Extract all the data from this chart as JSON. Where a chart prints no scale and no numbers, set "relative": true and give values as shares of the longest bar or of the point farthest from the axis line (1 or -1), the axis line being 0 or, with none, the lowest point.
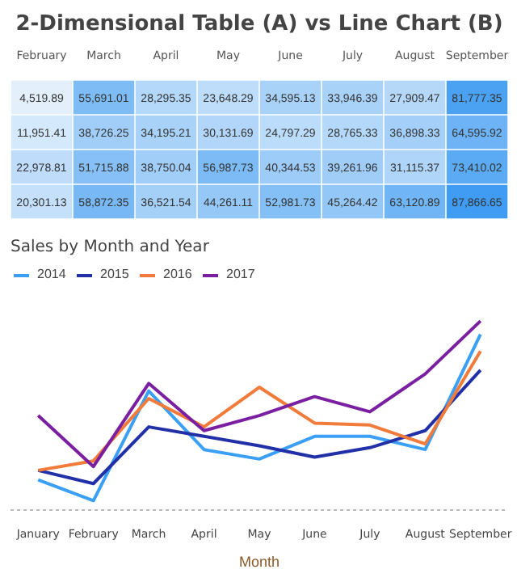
{
  "chart_data": [
    {
      "type": "heatmap",
      "title": "2-Dimensional Table (A) vs Line Chart (B)",
      "categories": [
        "February",
        "March",
        "April",
        "May",
        "June",
        "July",
        "August",
        "September"
      ],
      "y_categories": [
        null,
        null,
        null,
        null
      ],
      "cells": [
        [
          4519.89,
          55691.01,
          28295.35,
          23648.29,
          34595.13,
          33946.39,
          27909.47,
          81777.35
        ],
        [
          11951.41,
          38726.25,
          34195.21,
          30131.69,
          24797.29,
          28765.33,
          36898.33,
          64595.92
        ],
        [
          22978.81,
          51715.88,
          38750.04,
          56987.73,
          40344.53,
          39261.96,
          31115.37,
          73410.02
        ],
        [
          20301.13,
          58872.35,
          36521.54,
          44261.11,
          52981.73,
          45264.42,
          63120.89,
          87866.65
        ]
      ],
      "cell_labels": [
        [
          "4,519.89",
          "55,691.01",
          "28,295.35",
          "23,648.29",
          "34,595.13",
          "33,946.39",
          "27,909.47",
          "81,777.35"
        ],
        [
          "11,951.41",
          "38,726.25",
          "34,195.21",
          "30,131.69",
          "24,797.29",
          "28,765.33",
          "36,898.33",
          "64,595.92"
        ],
        [
          "22,978.81",
          "51,715.88",
          "38,750.04",
          "56,987.73",
          "40,344.53",
          "39,261.96",
          "31,115.37",
          "73,410.02"
        ],
        [
          "20,301.13",
          "58,872.35",
          "36,521.54",
          "44,261.11",
          "52,981.73",
          "45,264.42",
          "63,120.89",
          "87,866.65"
        ]
      ]
    },
    {
      "type": "line",
      "title": "Sales by Month and Year",
      "xlabel": "Month",
      "relative": true,
      "legend": "top left",
      "categories": [
        "January",
        "February",
        "March",
        "April",
        "May",
        "June",
        "July",
        "August",
        "September"
      ],
      "series": [
        {
          "name": "2014",
          "color": "#3ba0f5",
          "values": [
            0.16,
            0.05,
            0.63,
            0.32,
            0.27,
            0.39,
            0.39,
            0.32,
            0.93
          ]
        },
        {
          "name": "2015",
          "color": "#2230a8",
          "values": [
            0.21,
            0.14,
            0.44,
            0.39,
            0.34,
            0.28,
            0.33,
            0.42,
            0.74
          ]
        },
        {
          "name": "2016",
          "color": "#f07b3a",
          "values": [
            0.21,
            0.26,
            0.59,
            0.44,
            0.65,
            0.46,
            0.45,
            0.35,
            0.84
          ]
        },
        {
          "name": "2017",
          "color": "#7b1fa2",
          "values": [
            0.5,
            0.23,
            0.67,
            0.42,
            0.5,
            0.6,
            0.52,
            0.72,
            1.0
          ]
        }
      ]
    }
  ]
}
